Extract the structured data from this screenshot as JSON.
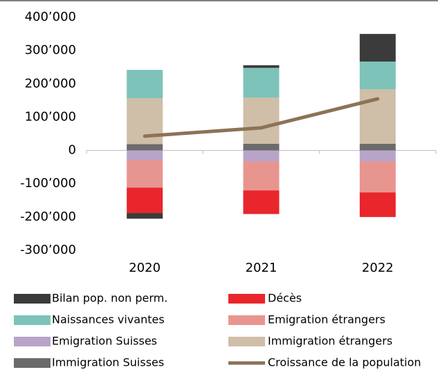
{
  "chart_data": {
    "type": "bar",
    "categories": [
      "2020",
      "2021",
      "2022"
    ],
    "ylim": [
      -300000,
      400000
    ],
    "yticks": [
      {
        "value": 400000,
        "label": "400’000"
      },
      {
        "value": 300000,
        "label": "300’000"
      },
      {
        "value": 200000,
        "label": "200’000"
      },
      {
        "value": 100000,
        "label": "100’000"
      },
      0,
      {
        "value": -100000,
        "label": "-100’000"
      },
      {
        "value": -200000,
        "label": "-200’000"
      },
      {
        "value": -300000,
        "label": "-300’000"
      }
    ],
    "stacked": true,
    "series": [
      {
        "name": "Bilan pop. non perm.",
        "color": "#3b3b3b",
        "values": [
          -17000,
          8000,
          83000
        ]
      },
      {
        "name": "Décès",
        "color": "#e8262b",
        "values": [
          -76000,
          -71000,
          -74000
        ]
      },
      {
        "name": "Naissances vivantes",
        "color": "#7dc3ba",
        "values": [
          85000,
          89000,
          83000
        ]
      },
      {
        "name": "Emigration étrangers",
        "color": "#e8958f",
        "values": [
          -83000,
          -87000,
          -93000
        ]
      },
      {
        "name": "Emigration Suisses",
        "color": "#b8a4c9",
        "values": [
          -29000,
          -33000,
          -33000
        ]
      },
      {
        "name": "Immigration étrangers",
        "color": "#cfbea8",
        "values": [
          138000,
          139000,
          164000
        ]
      },
      {
        "name": "Immigration Suisses",
        "color": "#6b6b6b",
        "values": [
          19000,
          20000,
          20000
        ]
      },
      {
        "name": "Croissance de la population",
        "color": "#8c7356",
        "type": "line",
        "values": [
          43000,
          68000,
          155000
        ]
      }
    ]
  }
}
